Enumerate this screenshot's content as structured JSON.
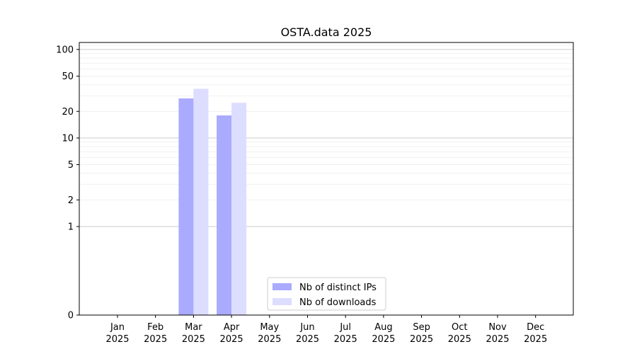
{
  "chart_data": {
    "type": "bar",
    "title": "OSTA.data 2025",
    "xlabel": "",
    "ylabel": "",
    "yscale": "symlog",
    "ylim": [
      0,
      120
    ],
    "y_ticks": [
      0,
      1,
      2,
      5,
      10,
      20,
      50,
      100
    ],
    "y_tick_labels": [
      "0",
      "1",
      "2",
      "5",
      "10",
      "20",
      "50",
      "100"
    ],
    "grid": true,
    "legend_position": "bottom-center",
    "categories": [
      {
        "month": "Jan",
        "year": "2025"
      },
      {
        "month": "Feb",
        "year": "2025"
      },
      {
        "month": "Mar",
        "year": "2025"
      },
      {
        "month": "Apr",
        "year": "2025"
      },
      {
        "month": "May",
        "year": "2025"
      },
      {
        "month": "Jun",
        "year": "2025"
      },
      {
        "month": "Jul",
        "year": "2025"
      },
      {
        "month": "Aug",
        "year": "2025"
      },
      {
        "month": "Sep",
        "year": "2025"
      },
      {
        "month": "Oct",
        "year": "2025"
      },
      {
        "month": "Nov",
        "year": "2025"
      },
      {
        "month": "Dec",
        "year": "2025"
      }
    ],
    "series": [
      {
        "name": "Nb of distinct IPs",
        "color": "#aaaaff",
        "values": [
          0,
          0,
          28,
          18,
          0,
          0,
          0,
          0,
          0,
          0,
          0,
          0
        ]
      },
      {
        "name": "Nb of downloads",
        "color": "#ddddff",
        "values": [
          0,
          0,
          36,
          25,
          0,
          0,
          0,
          0,
          0,
          0,
          0,
          0
        ]
      }
    ]
  }
}
